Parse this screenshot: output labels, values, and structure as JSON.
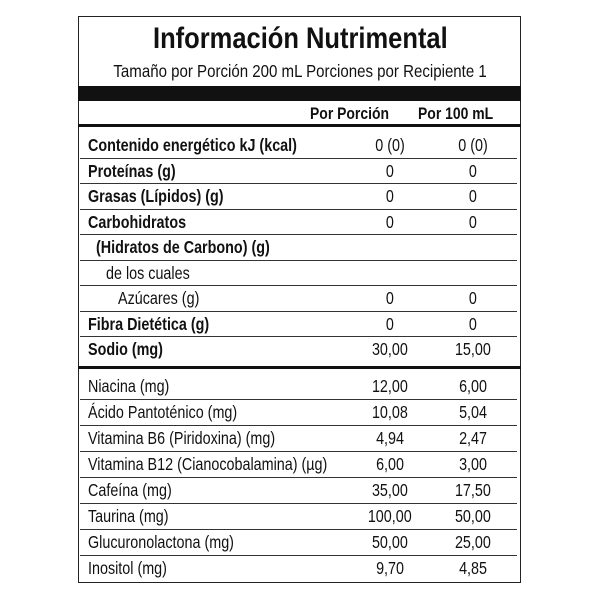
{
  "title": "Información Nutrimental",
  "serving": "Tamaño por Porción 200 mL  Porciones por Recipiente 1",
  "headers": {
    "per_portion": "Por Porción",
    "per_100": "Por 100 mL"
  },
  "nutrients": [
    {
      "label": "Contenido energético kJ (kcal)",
      "bold": true,
      "indent": 0,
      "per_portion": "0 (0)",
      "per_100": "0 (0)"
    },
    {
      "label": "Proteínas (g)",
      "bold": true,
      "indent": 0,
      "per_portion": "0",
      "per_100": "0"
    },
    {
      "label": "Grasas (Lípidos) (g)",
      "bold": true,
      "indent": 0,
      "per_portion": "0",
      "per_100": "0"
    },
    {
      "label": "Carbohidratos",
      "bold": true,
      "indent": 0,
      "per_portion": "0",
      "per_100": "0"
    },
    {
      "label": "(Hidratos de Carbono) (g)",
      "bold": true,
      "indent": 1,
      "per_portion": "",
      "per_100": ""
    },
    {
      "label": "de los cuales",
      "bold": false,
      "indent": 2,
      "per_portion": "",
      "per_100": ""
    },
    {
      "label": "Azúcares (g)",
      "bold": false,
      "indent": 3,
      "per_portion": "0",
      "per_100": "0"
    },
    {
      "label": "Fibra Dietética (g)",
      "bold": true,
      "indent": 0,
      "per_portion": "0",
      "per_100": "0"
    },
    {
      "label": "Sodio (mg)",
      "bold": true,
      "indent": 0,
      "per_portion": "30,00",
      "per_100": "15,00"
    }
  ],
  "other": [
    {
      "label": "Niacina (mg)",
      "per_portion": "12,00",
      "per_100": "6,00"
    },
    {
      "label": "Ácido Pantoténico (mg)",
      "per_portion": "10,08",
      "per_100": "5,04"
    },
    {
      "label": "Vitamina B6 (Piridoxina) (mg)",
      "per_portion": "4,94",
      "per_100": "2,47"
    },
    {
      "label": "Vitamina B12 (Cianocobalamina) (µg)",
      "per_portion": "6,00",
      "per_100": "3,00"
    },
    {
      "label": "Cafeína (mg)",
      "per_portion": "35,00",
      "per_100": "17,50"
    },
    {
      "label": "Taurina (mg)",
      "per_portion": "100,00",
      "per_100": "50,00"
    },
    {
      "label": "Glucuronolactona (mg)",
      "per_portion": "50,00",
      "per_100": "25,00"
    },
    {
      "label": "Inositol (mg)",
      "per_portion": "9,70",
      "per_100": "4,85"
    }
  ]
}
